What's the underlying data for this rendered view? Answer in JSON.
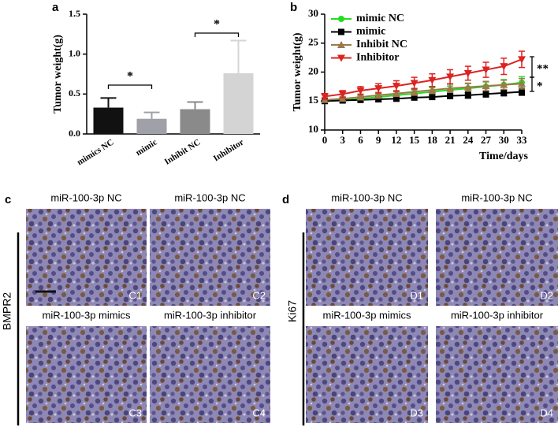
{
  "chart_data": [
    {
      "type": "bar",
      "panel": "a",
      "ylabel": "Tumor  weight(g)",
      "categories": [
        "mimics NC",
        "mimic",
        "Inhibit  NC",
        "Inhibitor"
      ],
      "values": [
        0.33,
        0.19,
        0.31,
        0.76
      ],
      "errors": [
        0.12,
        0.08,
        0.09,
        0.41
      ],
      "colors": [
        "#111111",
        "#a0a0a8",
        "#8a8a8a",
        "#d4d4d4"
      ],
      "ylim": [
        0,
        1.5
      ],
      "yticks": [
        {
          "value": 0,
          "label": "0.0"
        },
        0.5,
        {
          "value": 1,
          "label": "1.0"
        },
        1.5
      ],
      "annotations": [
        "*",
        "*"
      ]
    },
    {
      "type": "line",
      "panel": "b",
      "ylabel": "Tumor  weight(g)",
      "xlabel": "Time/days",
      "x": [
        0,
        3,
        6,
        9,
        12,
        15,
        18,
        21,
        24,
        27,
        30,
        33
      ],
      "xlim": [
        0,
        33
      ],
      "xticks": [
        0,
        3,
        6,
        9,
        12,
        15,
        18,
        21,
        24,
        27,
        30,
        33
      ],
      "ylim": [
        10,
        30
      ],
      "yticks": [
        10,
        15,
        20,
        25,
        30
      ],
      "series": [
        {
          "name": "mimic NC",
          "color": "#22dd22",
          "marker": "circle",
          "values": [
            15.0,
            15.2,
            15.4,
            15.7,
            16.0,
            16.3,
            16.6,
            16.9,
            17.2,
            17.5,
            17.8,
            18.2
          ],
          "errors": [
            0.4,
            0.4,
            0.5,
            0.5,
            0.6,
            0.6,
            0.7,
            0.7,
            0.8,
            0.8,
            0.9,
            1.0
          ]
        },
        {
          "name": "mimic",
          "color": "#000000",
          "marker": "square",
          "values": [
            15.0,
            15.1,
            15.2,
            15.3,
            15.4,
            15.6,
            15.7,
            15.9,
            16.0,
            16.2,
            16.4,
            16.6
          ],
          "errors": [
            0.3,
            0.3,
            0.3,
            0.4,
            0.4,
            0.4,
            0.4,
            0.5,
            0.5,
            0.5,
            0.5,
            0.6
          ]
        },
        {
          "name": "Inhibit NC",
          "color": "#9c7a4a",
          "marker": "triangle",
          "values": [
            15.2,
            15.4,
            15.7,
            16.0,
            16.3,
            16.6,
            16.9,
            17.2,
            17.4,
            17.6,
            17.8,
            18.0
          ],
          "errors": [
            0.4,
            0.4,
            0.5,
            0.5,
            0.5,
            0.6,
            0.6,
            0.7,
            0.7,
            0.8,
            0.8,
            0.9
          ]
        },
        {
          "name": "Inhibitor",
          "color": "#dd2222",
          "marker": "triangle-down",
          "values": [
            15.8,
            16.2,
            16.8,
            17.2,
            17.6,
            18.1,
            18.6,
            19.2,
            19.8,
            20.4,
            21.0,
            22.2
          ],
          "errors": [
            0.5,
            0.6,
            0.7,
            0.8,
            0.9,
            1.0,
            1.1,
            1.2,
            1.2,
            1.3,
            1.4,
            1.4
          ]
        }
      ],
      "annotations": [
        "**",
        "*"
      ]
    }
  ],
  "image_panels": [
    {
      "panel": "c",
      "row_label": "BMPR2",
      "images": [
        {
          "title": "miR-100-3p NC",
          "tag": "C1"
        },
        {
          "title": "miR-100-3p NC",
          "tag": "C2"
        },
        {
          "title": "miR-100-3p mimics",
          "tag": "C3"
        },
        {
          "title": "miR-100-3p inhibitor",
          "tag": "C4"
        }
      ]
    },
    {
      "panel": "d",
      "row_label": "Ki67",
      "images": [
        {
          "title": "miR-100-3p NC",
          "tag": "D1"
        },
        {
          "title": "miR-100-3p NC",
          "tag": "D2"
        },
        {
          "title": "miR-100-3p mimics",
          "tag": "D3"
        },
        {
          "title": "miR-100-3p inhibitor",
          "tag": "D4"
        }
      ]
    }
  ]
}
